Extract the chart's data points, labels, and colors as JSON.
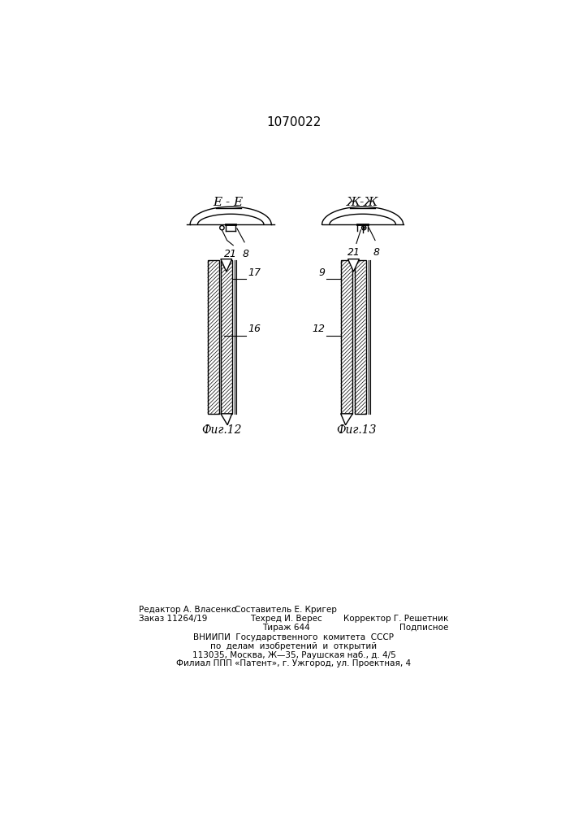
{
  "title": "1070022",
  "bg_color": "#ffffff",
  "label_EE": "E - E",
  "label_ZhZh": "Ж-Ж",
  "label_fig12": "Фиг.12",
  "label_fig13": "Фиг.13",
  "line_color": "#000000"
}
